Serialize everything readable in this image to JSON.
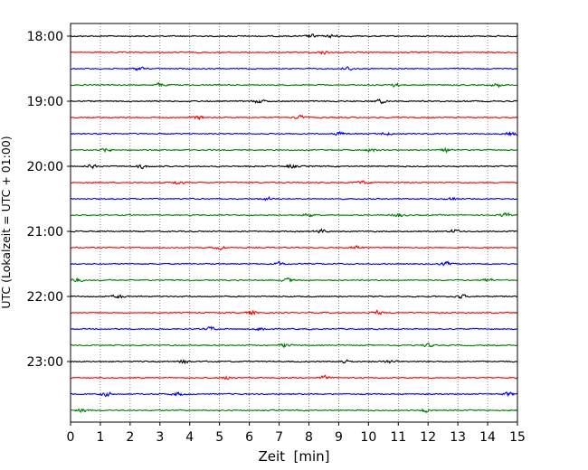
{
  "chart_data": {
    "type": "line",
    "title": "",
    "xlabel": "Zeit  [min]",
    "ylabel": "UTC (Lokalzeit = UTC + 01:00)",
    "xlim": [
      0,
      15
    ],
    "x_ticks": [
      "0",
      "1",
      "2",
      "3",
      "4",
      "5",
      "6",
      "7",
      "8",
      "9",
      "10",
      "11",
      "12",
      "13",
      "14",
      "15"
    ],
    "y_ticks": [
      "18:00",
      "19:00",
      "20:00",
      "21:00",
      "22:00",
      "23:00"
    ],
    "grid": "vertical dotted at each minute",
    "trace_interval_minutes": 15,
    "start_time": "18:00",
    "colors_cycle": [
      "#000000",
      "#ff0000",
      "#0000ff",
      "#008000"
    ],
    "series": [
      {
        "start": "18:00",
        "color": "#000000",
        "bursts": [
          8.1,
          8.8
        ]
      },
      {
        "start": "18:15",
        "color": "#ff0000",
        "bursts": [
          8.5
        ]
      },
      {
        "start": "18:30",
        "color": "#0000ff",
        "bursts": [
          2.3,
          9.3
        ]
      },
      {
        "start": "18:45",
        "color": "#008000",
        "bursts": [
          3.0,
          10.9,
          14.3
        ]
      },
      {
        "start": "19:00",
        "color": "#000000",
        "bursts": [
          6.3,
          10.4
        ]
      },
      {
        "start": "19:15",
        "color": "#ff0000",
        "bursts": [
          4.3,
          7.7
        ]
      },
      {
        "start": "19:30",
        "color": "#0000ff",
        "bursts": [
          9.0,
          10.6,
          14.8
        ]
      },
      {
        "start": "19:45",
        "color": "#008000",
        "bursts": [
          1.2,
          10.1,
          12.6
        ]
      },
      {
        "start": "20:00",
        "color": "#000000",
        "bursts": [
          0.7,
          2.4,
          7.4
        ]
      },
      {
        "start": "20:15",
        "color": "#ff0000",
        "bursts": [
          3.6,
          9.8
        ]
      },
      {
        "start": "20:30",
        "color": "#0000ff",
        "bursts": [
          6.6,
          12.8
        ]
      },
      {
        "start": "20:45",
        "color": "#008000",
        "bursts": [
          8.0,
          11.0,
          14.6
        ]
      },
      {
        "start": "21:00",
        "color": "#000000",
        "bursts": [
          8.4,
          12.9
        ]
      },
      {
        "start": "21:15",
        "color": "#ff0000",
        "bursts": [
          5.0,
          9.6
        ]
      },
      {
        "start": "21:30",
        "color": "#0000ff",
        "bursts": [
          7.0,
          12.6
        ]
      },
      {
        "start": "21:45",
        "color": "#008000",
        "bursts": [
          0.2,
          7.3,
          14.0
        ]
      },
      {
        "start": "22:00",
        "color": "#000000",
        "bursts": [
          1.6,
          13.1
        ]
      },
      {
        "start": "22:15",
        "color": "#ff0000",
        "bursts": [
          6.1,
          10.3
        ]
      },
      {
        "start": "22:30",
        "color": "#0000ff",
        "bursts": [
          4.7,
          6.4
        ]
      },
      {
        "start": "22:45",
        "color": "#008000",
        "bursts": [
          7.2,
          12.0
        ]
      },
      {
        "start": "23:00",
        "color": "#000000",
        "bursts": [
          3.8,
          9.2,
          10.7
        ]
      },
      {
        "start": "23:15",
        "color": "#ff0000",
        "bursts": [
          5.3,
          8.5
        ]
      },
      {
        "start": "23:30",
        "color": "#0000ff",
        "bursts": [
          1.2,
          3.6,
          14.7
        ]
      },
      {
        "start": "23:45",
        "color": "#008000",
        "bursts": [
          0.4,
          11.9
        ]
      }
    ]
  }
}
